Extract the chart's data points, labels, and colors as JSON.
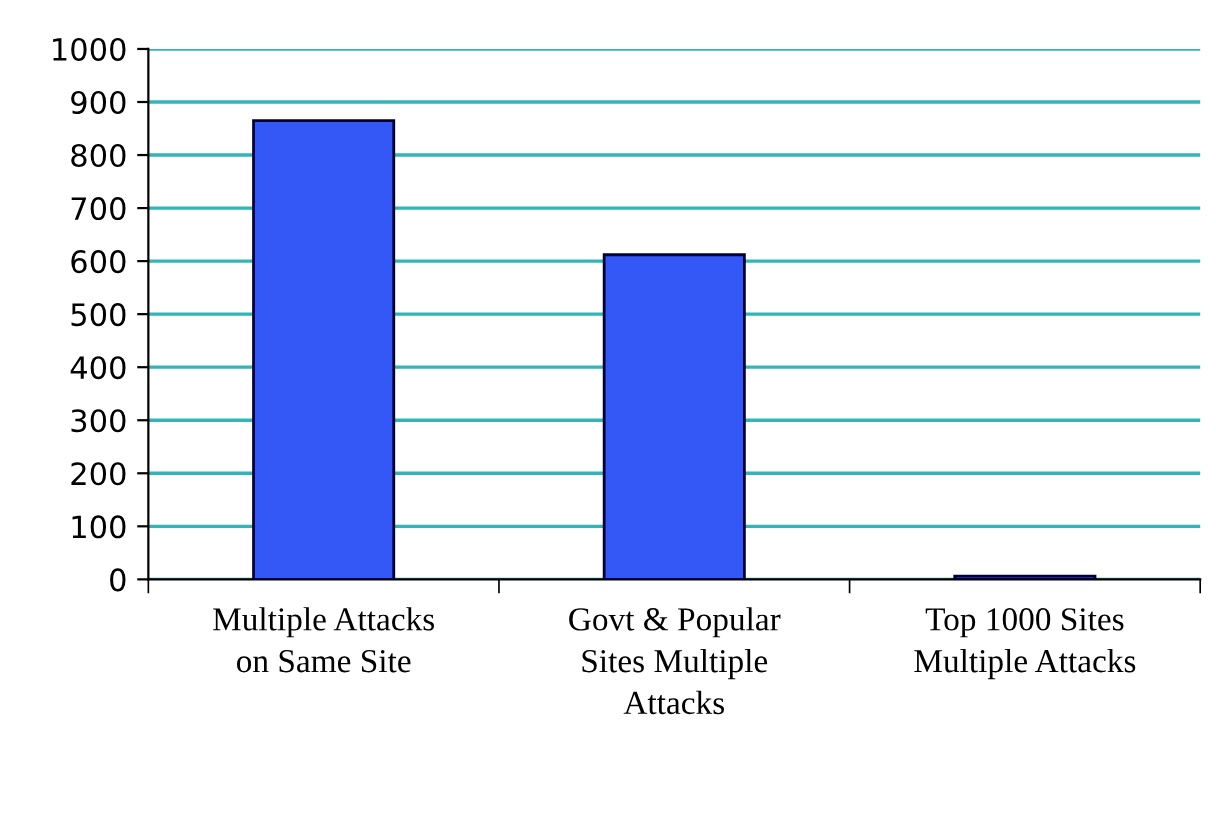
{
  "chart_data": {
    "type": "bar",
    "categories": [
      "Multiple Attacks on Same Site",
      "Govt & Popular Sites Multiple Attacks",
      "Top 1000 Sites Multiple Attacks"
    ],
    "values": [
      865,
      612,
      6
    ],
    "color": "#3358f5",
    "ylim": [
      0,
      1000
    ],
    "yticks": [
      0,
      100,
      200,
      300,
      400,
      500,
      600,
      700,
      800,
      900,
      1000
    ],
    "grid": "y"
  }
}
